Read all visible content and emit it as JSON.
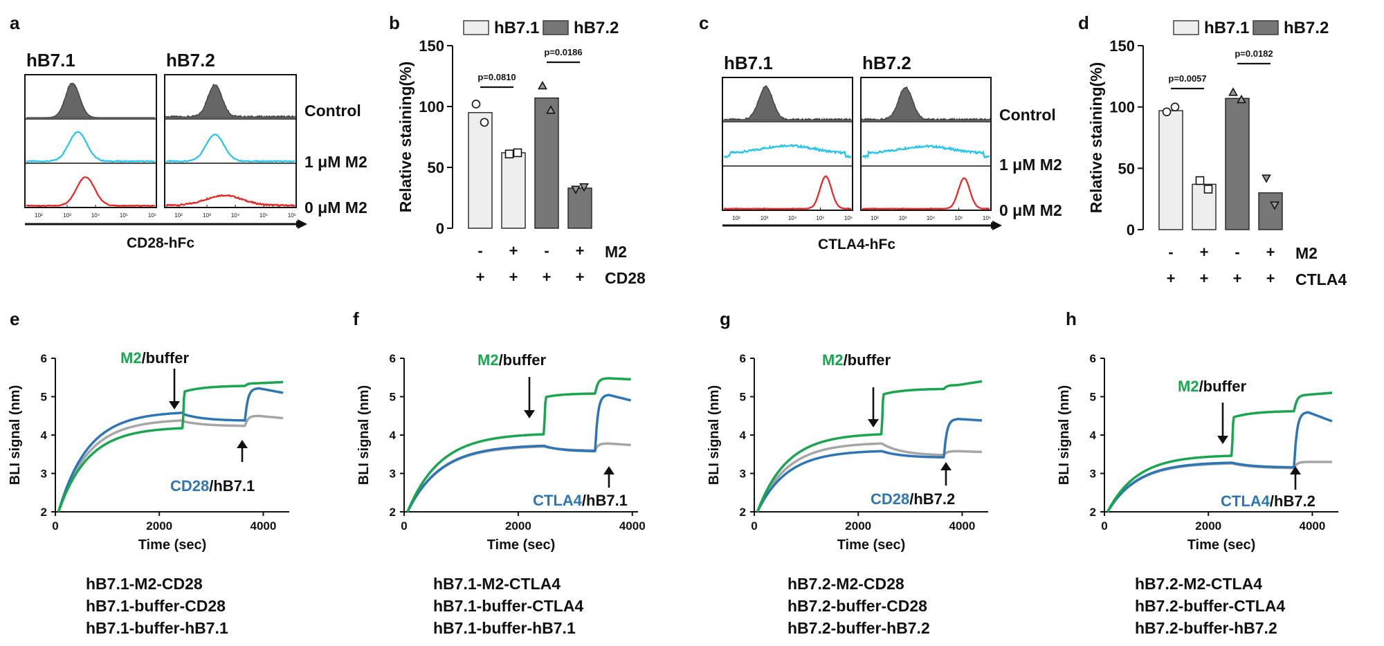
{
  "chart_data": [
    {
      "panel": "a",
      "type": "histogram",
      "columns": [
        "hB7.1",
        "hB7.2"
      ],
      "rows": [
        {
          "label": "Control",
          "color": "#666666",
          "filled": true
        },
        {
          "label": "1 μM M2",
          "color": "#23c4f0",
          "filled": false
        },
        {
          "label": "0 μM M2",
          "color": "#ee2020",
          "filled": false
        }
      ],
      "xtick_labels": [
        "10²",
        "10³",
        "10⁴",
        "10⁵",
        "10⁶"
      ],
      "xlabel": "CD28-hFc"
    },
    {
      "panel": "b",
      "type": "bar",
      "legend": [
        {
          "name": "hB7.1",
          "color": "#eeeeee"
        },
        {
          "name": "hB7.2",
          "color": "#777777"
        }
      ],
      "ylabel": "Relative staining(%)",
      "ylim": [
        0,
        150
      ],
      "yticks": [
        0,
        50,
        100,
        150
      ],
      "bars": [
        {
          "group": "hB7.1",
          "m2": "-",
          "receptor": "+",
          "value": 95,
          "points": [
            102,
            87
          ],
          "marker": "circle"
        },
        {
          "group": "hB7.1",
          "m2": "+",
          "receptor": "+",
          "value": 62,
          "points": [
            61,
            62
          ],
          "marker": "square"
        },
        {
          "group": "hB7.2",
          "m2": "-",
          "receptor": "+",
          "value": 107,
          "points": [
            117,
            97
          ],
          "marker": "triangle"
        },
        {
          "group": "hB7.2",
          "m2": "+",
          "receptor": "+",
          "value": 33,
          "points": [
            32,
            34
          ],
          "marker": "triangle-down"
        }
      ],
      "pvalues": [
        "p=0.0810",
        "p=0.0186"
      ],
      "row_labels": [
        "M2",
        "CD28"
      ]
    },
    {
      "panel": "c",
      "type": "histogram",
      "columns": [
        "hB7.1",
        "hB7.2"
      ],
      "rows": [
        {
          "label": "Control",
          "color": "#666666",
          "filled": true
        },
        {
          "label": "1 μM M2",
          "color": "#23c4f0",
          "filled": false
        },
        {
          "label": "0 μM M2",
          "color": "#ee2020",
          "filled": false
        }
      ],
      "xtick_labels": [
        "10²",
        "10³",
        "10⁴",
        "10⁵",
        "10⁶"
      ],
      "xlabel": "CTLA4-hFc"
    },
    {
      "panel": "d",
      "type": "bar",
      "legend": [
        {
          "name": "hB7.1",
          "color": "#eeeeee"
        },
        {
          "name": "hB7.2",
          "color": "#777777"
        }
      ],
      "ylabel": "Relative staining(%)",
      "ylim": [
        0,
        150
      ],
      "yticks": [
        0,
        50,
        100,
        150
      ],
      "bars": [
        {
          "group": "hB7.1",
          "m2": "-",
          "receptor": "+",
          "value": 97,
          "points": [
            96,
            100
          ],
          "marker": "circle"
        },
        {
          "group": "hB7.1",
          "m2": "+",
          "receptor": "+",
          "value": 37,
          "points": [
            40,
            33
          ],
          "marker": "square"
        },
        {
          "group": "hB7.2",
          "m2": "-",
          "receptor": "+",
          "value": 107,
          "points": [
            112,
            106
          ],
          "marker": "triangle"
        },
        {
          "group": "hB7.2",
          "m2": "+",
          "receptor": "+",
          "value": 30,
          "points": [
            42,
            20
          ],
          "marker": "triangle-down"
        }
      ],
      "pvalues": [
        "p=0.0057",
        "p=0.0182"
      ],
      "row_labels": [
        "M2",
        "CTLA4"
      ]
    },
    {
      "panel": "e",
      "type": "line",
      "xlabel": "Time (sec)",
      "ylabel": "BLI signal (nm)",
      "xlim": [
        0,
        4500
      ],
      "ylim": [
        2,
        6
      ],
      "xticks": [
        0,
        2000,
        4000
      ],
      "yticks": [
        2,
        3,
        4,
        5,
        6
      ],
      "t1": 2450,
      "t2": 3650,
      "series": [
        {
          "name": "hB7.1-M2-CD28",
          "color": "#1aa64f",
          "assoc_end": 4.18,
          "step1": 5.12,
          "end1": 5.28,
          "step2": 5.35,
          "end2": 5.38
        },
        {
          "name": "hB7.1-buffer-CD28",
          "color": "#2e75b6",
          "assoc_end": 4.58,
          "step1": 4.55,
          "end1": 4.38,
          "step2": 5.22,
          "end2": 5.1
        },
        {
          "name": "hB7.1-buffer-hB7.1",
          "color": "#a6a6a6",
          "assoc_end": 4.38,
          "step1": 4.36,
          "end1": 4.24,
          "step2": 4.5,
          "end2": 4.44
        }
      ],
      "annotation_top": {
        "colored": "M2",
        "rest": "/buffer"
      },
      "annotation_bottom": {
        "colored": "CD28",
        "rest": "/hB7.1"
      }
    },
    {
      "panel": "f",
      "type": "line",
      "xlabel": "Time (sec)",
      "ylabel": "BLI signal (nm)",
      "xlim": [
        0,
        4100
      ],
      "ylim": [
        2,
        6
      ],
      "xticks": [
        0,
        2000,
        4000
      ],
      "yticks": [
        2,
        3,
        4,
        5,
        6
      ],
      "t1": 2450,
      "t2": 3350,
      "series": [
        {
          "name": "hB7.1-M2-CTLA4",
          "color": "#1aa64f",
          "assoc_end": 4.02,
          "step1": 4.98,
          "end1": 5.08,
          "step2": 5.48,
          "end2": 5.45
        },
        {
          "name": "hB7.1-buffer-CTLA4",
          "color": "#2e75b6",
          "assoc_end": 3.72,
          "step1": 3.72,
          "end1": 3.58,
          "step2": 5.05,
          "end2": 4.9
        },
        {
          "name": "hB7.1-buffer-hB7.1",
          "color": "#a6a6a6",
          "assoc_end": 3.7,
          "step1": 3.7,
          "end1": 3.6,
          "step2": 3.78,
          "end2": 3.74
        }
      ],
      "annotation_top": {
        "colored": "M2",
        "rest": "/buffer"
      },
      "annotation_bottom": {
        "colored": "CTLA4",
        "rest": "/hB7.1"
      }
    },
    {
      "panel": "g",
      "type": "line",
      "xlabel": "Time (sec)",
      "ylabel": "BLI signal (nm)",
      "xlim": [
        0,
        4500
      ],
      "ylim": [
        2,
        6
      ],
      "xticks": [
        0,
        2000,
        4000
      ],
      "yticks": [
        2,
        3,
        4,
        5,
        6
      ],
      "t1": 2450,
      "t2": 3650,
      "series": [
        {
          "name": "hB7.2-M2-CD28",
          "color": "#1aa64f",
          "assoc_end": 4.02,
          "step1": 5.05,
          "end1": 5.2,
          "step2": 5.3,
          "end2": 5.4
        },
        {
          "name": "hB7.2-buffer-CD28",
          "color": "#2e75b6",
          "assoc_end": 3.58,
          "step1": 3.58,
          "end1": 3.42,
          "step2": 4.42,
          "end2": 4.38
        },
        {
          "name": "hB7.2-buffer-hB7.2",
          "color": "#a6a6a6",
          "assoc_end": 3.78,
          "step1": 3.78,
          "end1": 3.48,
          "step2": 3.58,
          "end2": 3.56
        }
      ],
      "annotation_top": {
        "colored": "M2",
        "rest": "/buffer"
      },
      "annotation_bottom": {
        "colored": "CD28",
        "rest": "/hB7.2"
      }
    },
    {
      "panel": "h",
      "type": "line",
      "xlabel": "Time (sec)",
      "ylabel": "BLI signal (nm)",
      "xlim": [
        0,
        4500
      ],
      "ylim": [
        2,
        6
      ],
      "xticks": [
        0,
        2000,
        4000
      ],
      "yticks": [
        2,
        3,
        4,
        5,
        6
      ],
      "t1": 2450,
      "t2": 3650,
      "series": [
        {
          "name": "hB7.2-M2-CTLA4",
          "color": "#1aa64f",
          "assoc_end": 3.46,
          "step1": 4.45,
          "end1": 4.62,
          "step2": 5.05,
          "end2": 5.1
        },
        {
          "name": "hB7.2-buffer-CTLA4",
          "color": "#2e75b6",
          "assoc_end": 3.28,
          "step1": 3.28,
          "end1": 3.16,
          "step2": 4.6,
          "end2": 4.36
        },
        {
          "name": "hB7.2-buffer-hB7.2",
          "color": "#a6a6a6",
          "assoc_end": 3.26,
          "step1": 3.26,
          "end1": 3.14,
          "step2": 3.3,
          "end2": 3.3
        }
      ],
      "annotation_top": {
        "colored": "M2",
        "rest": "/buffer"
      },
      "annotation_bottom": {
        "colored": "CTLA4",
        "rest": "/hB7.2"
      }
    }
  ]
}
